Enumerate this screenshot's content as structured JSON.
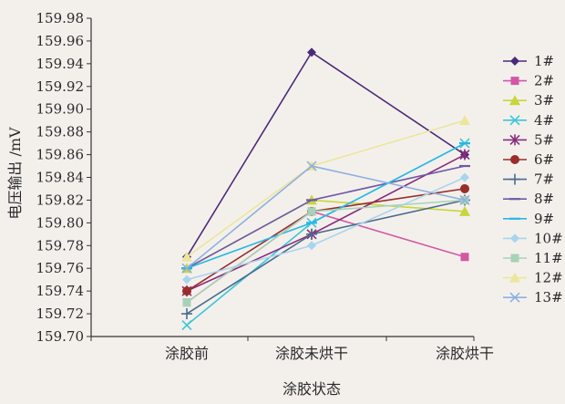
{
  "chart_data": {
    "type": "line",
    "title": "",
    "xlabel": "涂胶状态",
    "ylabel": "电压输出 /mV",
    "categories": [
      "涂胶前",
      "涂胶未烘干",
      "涂胶烘干"
    ],
    "ylim": [
      159.7,
      159.98
    ],
    "yticks": [
      "159.70",
      "159.72",
      "159.74",
      "159.76",
      "159.78",
      "159.80",
      "159.82",
      "159.84",
      "159.86",
      "159.88",
      "159.90",
      "159.92",
      "159.94",
      "159.96",
      "159.98"
    ],
    "grid": false,
    "legend": "right",
    "series": [
      {
        "name": "1#",
        "marker": "diamond",
        "color": "#4b2a7a",
        "values": [
          159.77,
          159.95,
          159.86
        ]
      },
      {
        "name": "2#",
        "marker": "square",
        "color": "#d457a6",
        "values": [
          159.73,
          159.81,
          159.77
        ]
      },
      {
        "name": "3#",
        "marker": "triangle",
        "color": "#c8d63a",
        "values": [
          159.76,
          159.82,
          159.81
        ]
      },
      {
        "name": "4#",
        "marker": "x",
        "color": "#3cc6d8",
        "values": [
          159.71,
          159.8,
          159.87
        ]
      },
      {
        "name": "5#",
        "marker": "star",
        "color": "#8a2c7d",
        "values": [
          159.74,
          159.79,
          159.86
        ]
      },
      {
        "name": "6#",
        "marker": "circle",
        "color": "#9a2d2b",
        "values": [
          159.74,
          159.81,
          159.83
        ]
      },
      {
        "name": "7#",
        "marker": "plus",
        "color": "#4a6c8c",
        "values": [
          159.72,
          159.79,
          159.82
        ]
      },
      {
        "name": "8#",
        "marker": "dash",
        "color": "#6e5aa6",
        "values": [
          159.76,
          159.82,
          159.85
        ]
      },
      {
        "name": "9#",
        "marker": "dash",
        "color": "#27b8e6",
        "values": [
          159.76,
          159.8,
          159.87
        ]
      },
      {
        "name": "10#",
        "marker": "diamond",
        "color": "#a9d4ee",
        "values": [
          159.75,
          159.78,
          159.84
        ]
      },
      {
        "name": "11#",
        "marker": "square",
        "color": "#a7d2b8",
        "values": [
          159.73,
          159.81,
          159.82
        ]
      },
      {
        "name": "12#",
        "marker": "triangle",
        "color": "#ece69a",
        "values": [
          159.77,
          159.85,
          159.89
        ]
      },
      {
        "name": "13#",
        "marker": "x",
        "color": "#8fb0e0",
        "values": [
          159.76,
          159.85,
          159.82
        ]
      }
    ]
  }
}
